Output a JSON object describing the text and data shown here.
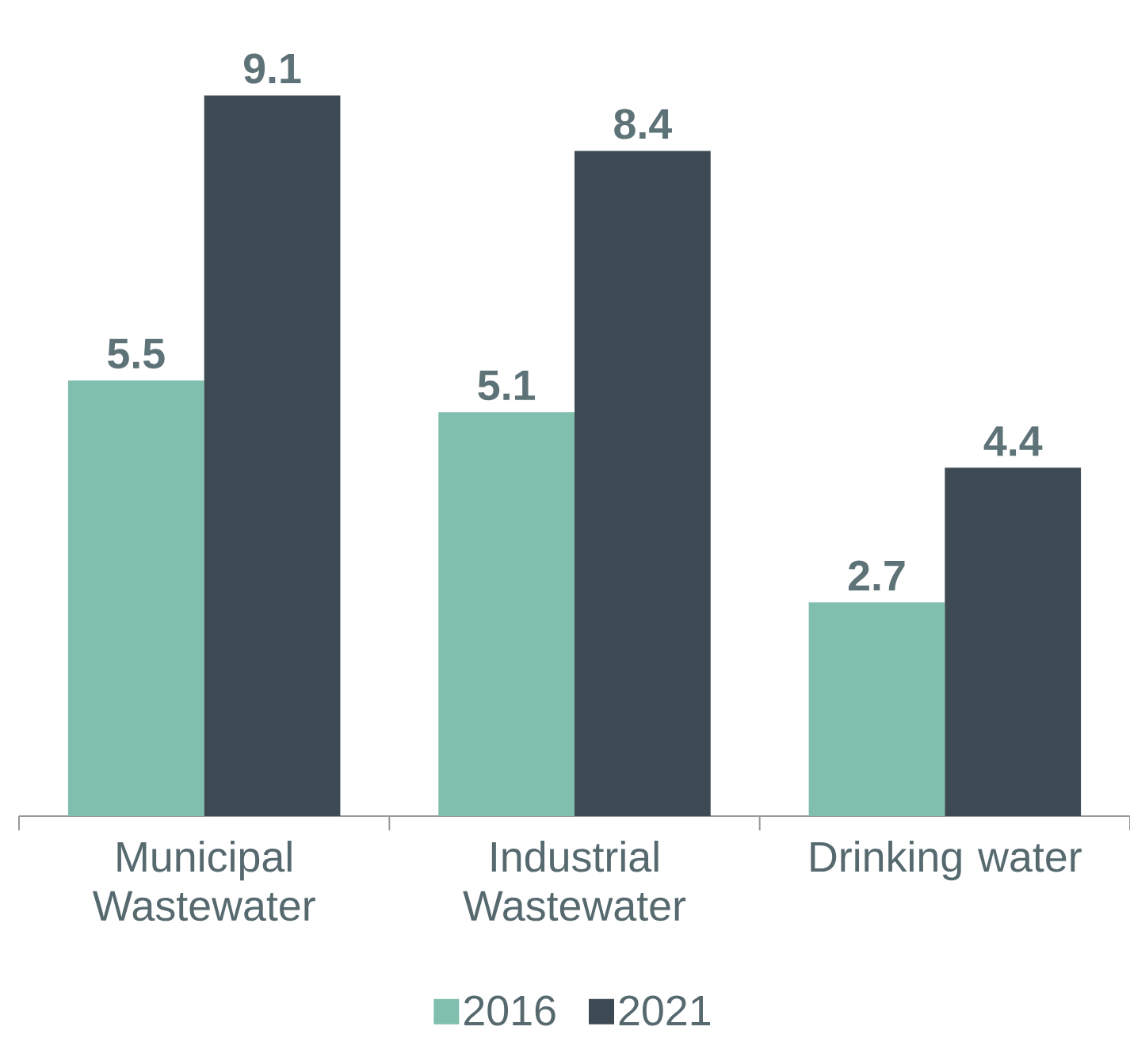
{
  "chart_data": {
    "type": "bar",
    "categories": [
      "Municipal Wastewater",
      "Industrial Wastewater",
      "Drinking water"
    ],
    "series": [
      {
        "name": "2016",
        "color": "#80bfad",
        "values": [
          5.5,
          5.1,
          2.7
        ]
      },
      {
        "name": "2021",
        "color": "#3e4a53",
        "values": [
          9.1,
          8.4,
          4.4
        ]
      }
    ],
    "data_labels": true,
    "legend": "bottom"
  }
}
